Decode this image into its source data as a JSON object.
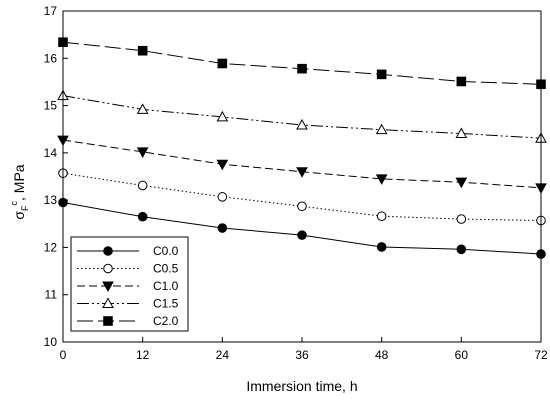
{
  "chart_data": {
    "type": "line",
    "xlabel": "Immersion time, h",
    "ylabel": {
      "sigma": "σ",
      "sub": "F",
      "sup": "c",
      "unit": ", MPa"
    },
    "xlim": [
      0,
      72
    ],
    "ylim": [
      10,
      17
    ],
    "xticks": [
      "0",
      "12",
      "24",
      "36",
      "48",
      "60",
      "72"
    ],
    "yticks": [
      "10",
      "11",
      "12",
      "13",
      "14",
      "15",
      "16",
      "17"
    ],
    "x": [
      0,
      12,
      24,
      36,
      48,
      60,
      72
    ],
    "grid": false,
    "legend_position": "bottom-left",
    "series": [
      {
        "name": "C0.0",
        "marker": "filled-circle",
        "line": "solid",
        "values": [
          12.95,
          12.65,
          12.41,
          12.26,
          12.01,
          11.96,
          11.86
        ]
      },
      {
        "name": "C0.5",
        "marker": "open-circle",
        "line": "dotted",
        "values": [
          13.57,
          13.31,
          13.07,
          12.87,
          12.66,
          12.6,
          12.57
        ]
      },
      {
        "name": "C1.0",
        "marker": "filled-triangle-down",
        "line": "dashed",
        "values": [
          14.27,
          14.02,
          13.76,
          13.6,
          13.45,
          13.38,
          13.26
        ]
      },
      {
        "name": "C1.5",
        "marker": "open-triangle-up",
        "line": "dash-dot-dot",
        "values": [
          15.21,
          14.92,
          14.76,
          14.59,
          14.49,
          14.41,
          14.31
        ]
      },
      {
        "name": "C2.0",
        "marker": "filled-square",
        "line": "long-dash",
        "values": [
          16.34,
          16.16,
          15.89,
          15.78,
          15.66,
          15.51,
          15.45
        ]
      }
    ]
  }
}
